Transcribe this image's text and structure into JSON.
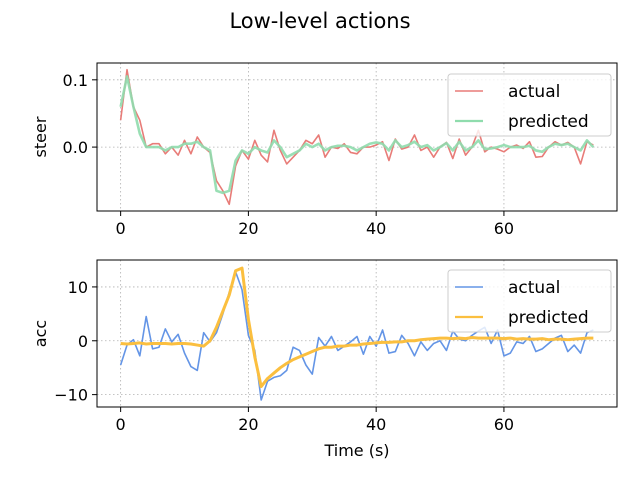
{
  "chart_data": {
    "title": "Low-level actions",
    "xlabel": "Time (s)",
    "xlim": [
      -3.7,
      77.7
    ],
    "xticks": [
      0,
      20,
      40,
      60
    ],
    "grid": true,
    "legend_placement": "top-right",
    "panels": [
      {
        "ylabel": "steer",
        "ylim": [
          -0.095,
          0.125
        ],
        "yticks": [
          0.0,
          0.1
        ],
        "ytick_labels": [
          "0.0",
          "0.1"
        ],
        "series": [
          {
            "name": "actual",
            "color": "#e87c78",
            "values": [
              0.04,
              0.115,
              0.06,
              0.04,
              0.0,
              0.005,
              0.005,
              -0.01,
              0.0,
              -0.012,
              0.01,
              -0.01,
              0.015,
              0.0,
              -0.008,
              -0.05,
              -0.065,
              -0.085,
              -0.028,
              -0.005,
              -0.018,
              0.01,
              -0.012,
              -0.022,
              0.025,
              -0.005,
              -0.025,
              -0.015,
              -0.005,
              0.01,
              0.005,
              0.018,
              -0.015,
              0.0,
              -0.002,
              0.005,
              -0.008,
              -0.01,
              0.0,
              0.0,
              0.003,
              0.008,
              -0.02,
              0.012,
              -0.003,
              0.0,
              0.018,
              -0.005,
              0.0,
              -0.015,
              0.0,
              0.007,
              -0.017,
              0.012,
              -0.012,
              0.0,
              0.025,
              -0.007,
              0.0,
              -0.003,
              -0.007,
              0.0,
              0.003,
              -0.002,
              0.008,
              -0.015,
              -0.014,
              0.0,
              0.008,
              0.003,
              0.007,
              0.0,
              -0.025,
              0.008,
              0.003
            ]
          },
          {
            "name": "predicted",
            "color": "#8fdcad",
            "values": [
              0.06,
              0.105,
              0.06,
              0.02,
              0.0,
              0.0,
              0.0,
              -0.005,
              0.0,
              0.0,
              0.005,
              0.005,
              0.008,
              0.0,
              -0.005,
              -0.065,
              -0.068,
              -0.065,
              -0.02,
              -0.005,
              -0.01,
              0.0,
              -0.005,
              -0.008,
              0.01,
              0.0,
              -0.015,
              -0.01,
              -0.005,
              0.005,
              0.0,
              0.005,
              -0.005,
              0.0,
              0.002,
              0.002,
              0.0,
              -0.005,
              0.0,
              0.005,
              0.007,
              0.005,
              -0.005,
              0.01,
              0.0,
              0.003,
              0.008,
              0.0,
              0.003,
              -0.005,
              0.0,
              0.006,
              -0.005,
              0.008,
              -0.005,
              0.0,
              0.01,
              -0.003,
              -0.002,
              0.0,
              0.003,
              0.0,
              0.0,
              0.0,
              0.002,
              -0.005,
              -0.007,
              0.0,
              0.005,
              0.003,
              0.005,
              0.0,
              -0.005,
              0.01,
              0.0
            ]
          }
        ]
      },
      {
        "ylabel": "acc",
        "ylim": [
          -12.3,
          15.0
        ],
        "yticks": [
          -10,
          0,
          10
        ],
        "ytick_labels": [
          "−10",
          "0",
          "10"
        ],
        "series": [
          {
            "name": "actual",
            "color": "#6495e6",
            "values": [
              -4.5,
              -0.8,
              0.2,
              -2.8,
              4.5,
              -1.5,
              -1.2,
              2.2,
              -0.2,
              1.2,
              -2.3,
              -4.8,
              -5.5,
              1.5,
              -0.2,
              1.5,
              5.0,
              9.0,
              12.8,
              9.5,
              1.0,
              -1.8,
              -11.0,
              -7.5,
              -6.8,
              -6.5,
              -5.5,
              -1.2,
              -1.8,
              -4.5,
              -6.2,
              0.6,
              -1.0,
              0.8,
              -1.8,
              -1.0,
              -0.2,
              0.8,
              -2.5,
              0.8,
              -1.0,
              2.0,
              -2.3,
              -2.0,
              1.0,
              -0.5,
              -2.8,
              -0.2,
              -1.8,
              -0.5,
              0.0,
              -1.8,
              1.8,
              0.3,
              0.0,
              1.0,
              1.8,
              2.5,
              -0.5,
              2.0,
              -2.8,
              -2.3,
              -0.2,
              -0.5,
              0.8,
              -2.0,
              -1.5,
              -0.5,
              0.5,
              1.0,
              -2.0,
              -0.8,
              -2.3,
              1.5,
              2.0
            ]
          },
          {
            "name": "predicted",
            "color": "#fbbf3f",
            "values": [
              -0.5,
              -0.6,
              -0.5,
              -0.4,
              -0.6,
              -0.5,
              -0.5,
              -0.5,
              -0.6,
              -0.5,
              -0.5,
              -0.6,
              -0.8,
              -1.0,
              0.0,
              2.5,
              5.5,
              8.5,
              13.0,
              13.5,
              4.0,
              -3.0,
              -8.5,
              -7.0,
              -6.0,
              -5.0,
              -4.2,
              -3.5,
              -3.0,
              -2.5,
              -2.0,
              -1.5,
              -1.2,
              -1.2,
              -1.0,
              -1.0,
              -0.8,
              -0.8,
              -0.6,
              -0.5,
              -0.4,
              -0.3,
              -0.3,
              -0.2,
              -0.2,
              0.0,
              0.0,
              0.2,
              0.3,
              0.4,
              0.5,
              0.5,
              0.4,
              0.5,
              0.4,
              0.6,
              0.5,
              0.5,
              0.5,
              0.5,
              0.4,
              0.5,
              0.3,
              0.4,
              0.3,
              0.3,
              0.4,
              0.2,
              0.3,
              0.3,
              0.2,
              0.3,
              0.4,
              0.5,
              0.5
            ]
          }
        ]
      }
    ]
  }
}
